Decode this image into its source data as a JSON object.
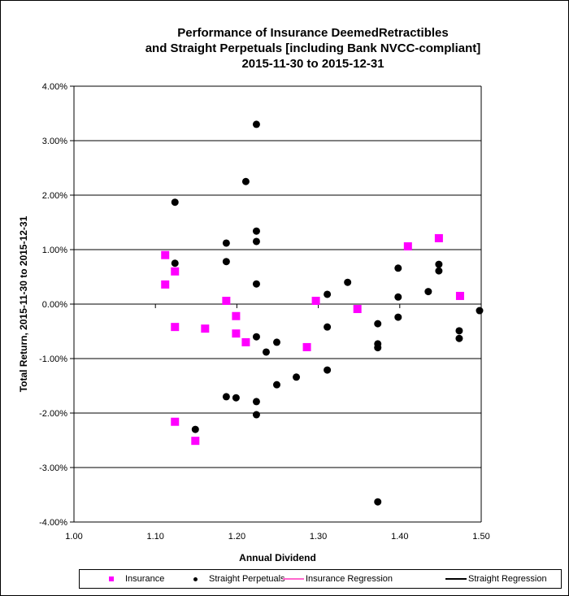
{
  "chart_data": {
    "type": "scatter",
    "title": [
      "Performance of Insurance DeemedRetractibles",
      "and Straight Perpetuals [including Bank NVCC-compliant]",
      "2015-11-30 to 2015-12-31"
    ],
    "xlabel": "Annual Dividend",
    "ylabel": "Total Return, 2015-11-30  to 2015-12-31",
    "xlim": [
      1.0,
      1.5
    ],
    "ylim": [
      -4.0,
      4.0
    ],
    "xticks": [
      "1.00",
      "1.10",
      "1.20",
      "1.30",
      "1.40",
      "1.50"
    ],
    "yticks": [
      "4.00%",
      "3.00%",
      "2.00%",
      "1.00%",
      "0.00%",
      "-1.00%",
      "-2.00%",
      "-3.00%",
      "-4.00%"
    ],
    "grid": "horizontal",
    "legend_position": "bottom",
    "series": [
      {
        "name": "Insurance",
        "marker": "square",
        "color": "#ff00ff",
        "points": [
          [
            1.112,
            0.9
          ],
          [
            1.112,
            0.36
          ],
          [
            1.124,
            0.6
          ],
          [
            1.124,
            -0.42
          ],
          [
            1.161,
            -0.45
          ],
          [
            1.187,
            0.06
          ],
          [
            1.199,
            -0.22
          ],
          [
            1.199,
            -0.54
          ],
          [
            1.211,
            -0.7
          ],
          [
            1.286,
            -0.79
          ],
          [
            1.297,
            0.06
          ],
          [
            1.348,
            -0.09
          ],
          [
            1.41,
            1.06
          ],
          [
            1.448,
            1.21
          ],
          [
            1.474,
            0.15
          ],
          [
            1.124,
            -2.16
          ],
          [
            1.149,
            -2.51
          ]
        ]
      },
      {
        "name": "Straight Perpetuals",
        "marker": "circle",
        "color": "#000000",
        "points": [
          [
            1.224,
            3.3
          ],
          [
            1.211,
            2.25
          ],
          [
            1.124,
            1.87
          ],
          [
            1.224,
            1.34
          ],
          [
            1.187,
            1.12
          ],
          [
            1.224,
            1.15
          ],
          [
            1.124,
            0.75
          ],
          [
            1.187,
            0.78
          ],
          [
            1.224,
            0.37
          ],
          [
            1.224,
            -0.6
          ],
          [
            1.249,
            -0.7
          ],
          [
            1.236,
            -0.88
          ],
          [
            1.273,
            -1.34
          ],
          [
            1.249,
            -1.48
          ],
          [
            1.187,
            -1.7
          ],
          [
            1.199,
            -1.72
          ],
          [
            1.224,
            -1.79
          ],
          [
            1.224,
            -2.03
          ],
          [
            1.149,
            -2.3
          ],
          [
            1.311,
            0.18
          ],
          [
            1.311,
            -0.42
          ],
          [
            1.311,
            -1.21
          ],
          [
            1.336,
            0.4
          ],
          [
            1.373,
            -0.36
          ],
          [
            1.373,
            -0.73
          ],
          [
            1.373,
            -0.8
          ],
          [
            1.373,
            -3.63
          ],
          [
            1.398,
            0.66
          ],
          [
            1.398,
            0.13
          ],
          [
            1.398,
            -0.24
          ],
          [
            1.435,
            0.23
          ],
          [
            1.448,
            0.73
          ],
          [
            1.448,
            0.61
          ],
          [
            1.473,
            -0.49
          ],
          [
            1.473,
            -0.63
          ],
          [
            1.498,
            -0.12
          ]
        ]
      },
      {
        "name": "Insurance Regression",
        "type": "line",
        "color": "#ff66cc",
        "points": []
      },
      {
        "name": "Straight Regression",
        "type": "line",
        "color": "#000000",
        "points": []
      }
    ]
  }
}
